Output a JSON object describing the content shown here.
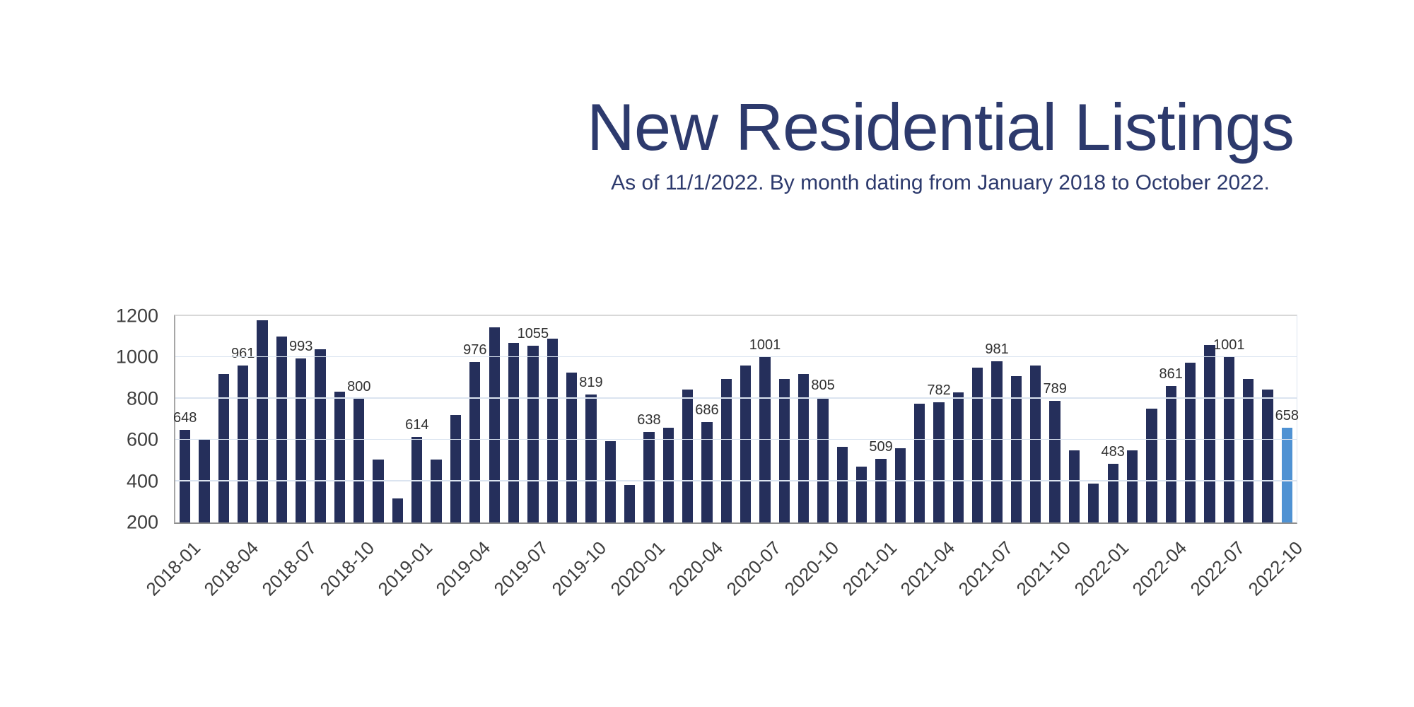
{
  "title": "New Residential Listings",
  "subtitle": "As of 11/1/2022. By month dating from January 2018 to October 2022.",
  "colors": {
    "title_text": "#2d3a6d",
    "bar": "#252f5b",
    "bar_highlight": "#4f92d3",
    "gridline": "#dbe4f0",
    "axis_line": "#8f8f8f",
    "axis_text": "#3d3d3d",
    "data_label_text": "#303030"
  },
  "chart_data": {
    "type": "bar",
    "title": "New Residential Listings",
    "subtitle": "As of 11/1/2022. By month dating from January 2018 to October 2022.",
    "x": [
      "2018-01",
      "2018-02",
      "2018-03",
      "2018-04",
      "2018-05",
      "2018-06",
      "2018-07",
      "2018-08",
      "2018-09",
      "2018-10",
      "2018-11",
      "2018-12",
      "2019-01",
      "2019-02",
      "2019-03",
      "2019-04",
      "2019-05",
      "2019-06",
      "2019-07",
      "2019-08",
      "2019-09",
      "2019-10",
      "2019-11",
      "2019-12",
      "2020-01",
      "2020-02",
      "2020-03",
      "2020-04",
      "2020-05",
      "2020-06",
      "2020-07",
      "2020-08",
      "2020-09",
      "2020-10",
      "2020-11",
      "2020-12",
      "2021-01",
      "2021-02",
      "2021-03",
      "2021-04",
      "2021-05",
      "2021-06",
      "2021-07",
      "2021-08",
      "2021-09",
      "2021-10",
      "2021-11",
      "2021-12",
      "2022-01",
      "2022-02",
      "2022-03",
      "2022-04",
      "2022-05",
      "2022-06",
      "2022-07",
      "2022-08",
      "2022-09",
      "2022-10"
    ],
    "values": [
      648,
      605,
      920,
      961,
      1180,
      1100,
      993,
      1040,
      835,
      800,
      505,
      315,
      614,
      505,
      720,
      976,
      1145,
      1070,
      1055,
      1090,
      925,
      819,
      595,
      380,
      638,
      660,
      845,
      686,
      895,
      960,
      1001,
      895,
      920,
      805,
      565,
      470,
      509,
      560,
      775,
      782,
      830,
      950,
      981,
      910,
      960,
      789,
      550,
      390,
      483,
      550,
      750,
      861,
      975,
      1060,
      1001,
      895,
      845,
      658
    ],
    "data_labels": [
      648,
      961,
      993,
      800,
      614,
      976,
      1055,
      819,
      638,
      686,
      1001,
      805,
      509,
      782,
      981,
      789,
      483,
      861,
      1001,
      658
    ],
    "data_label_every": 3,
    "x_tick_every": 3,
    "x_tick_labels": [
      "2018-01",
      "2018-04",
      "2018-07",
      "2018-10",
      "2019-01",
      "2019-04",
      "2019-07",
      "2019-10",
      "2020-01",
      "2020-04",
      "2020-07",
      "2020-10",
      "2021-01",
      "2021-04",
      "2021-07",
      "2021-10",
      "2022-01",
      "2022-04",
      "2022-07",
      "2022-10"
    ],
    "ylim": [
      200,
      1200
    ],
    "yticks": [
      200,
      400,
      600,
      800,
      1000,
      1200
    ],
    "grid": true,
    "legend": false,
    "highlight_index": 57
  }
}
